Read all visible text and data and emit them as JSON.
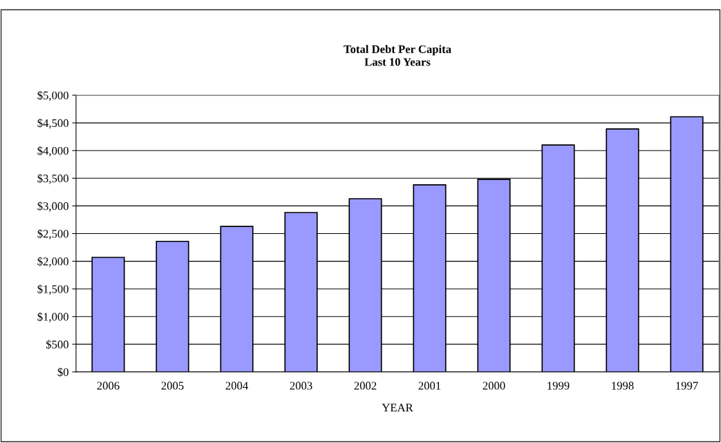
{
  "chart_data": {
    "type": "bar",
    "title": "Total Debt Per Capita\nLast 10 Years",
    "xlabel": "YEAR",
    "categories": [
      "2006",
      "2005",
      "2004",
      "2003",
      "2002",
      "2001",
      "2000",
      "1999",
      "1998",
      "1997"
    ],
    "values": [
      2070,
      2360,
      2630,
      2880,
      3130,
      3380,
      3480,
      4100,
      4390,
      4610
    ],
    "color": "#9999ff",
    "ylim": [
      0,
      5000
    ],
    "yticks": [
      {
        "value": 0,
        "label": "$0"
      },
      {
        "value": 500,
        "label": "$500"
      },
      {
        "value": 1000,
        "label": "$1,000"
      },
      {
        "value": 1500,
        "label": "$1,500"
      },
      {
        "value": 2000,
        "label": "$2,000"
      },
      {
        "value": 2500,
        "label": "$2,500"
      },
      {
        "value": 3000,
        "label": "$3,000"
      },
      {
        "value": 3500,
        "label": "$3,500"
      },
      {
        "value": 4000,
        "label": "$4,000"
      },
      {
        "value": 4500,
        "label": "$4,500"
      },
      {
        "value": 5000,
        "label": "$5,000"
      }
    ],
    "grid": "y",
    "legend": false
  }
}
